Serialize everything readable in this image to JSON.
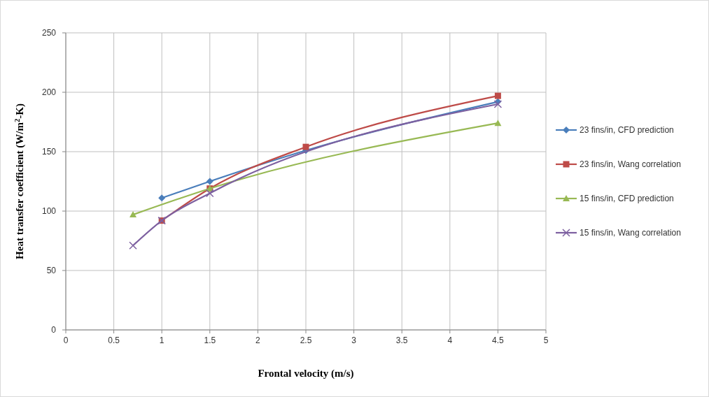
{
  "chart_data": {
    "type": "line",
    "xlabel": "Frontal velocity (m/s)",
    "ylabel": "Heat transfer coefficient (W/m$^{2}$-K)",
    "xlim": [
      0,
      5
    ],
    "xticks": [
      0,
      0.5,
      1,
      1.5,
      2,
      2.5,
      3,
      3.5,
      4,
      4.5,
      5
    ],
    "ylim": [
      0,
      250
    ],
    "yticks": [
      0,
      50,
      100,
      150,
      200,
      250
    ],
    "grid": true,
    "legend": "right",
    "series": [
      {
        "name": "23 fins/in, CFD prediction",
        "color": "#4a7ebb",
        "marker": "diamond",
        "x": [
          1,
          1.5,
          2.5,
          4.5
        ],
        "values": [
          111,
          125,
          151,
          192
        ]
      },
      {
        "name": "23 fins/in, Wang correlation",
        "color": "#be4b48",
        "marker": "square",
        "x": [
          1,
          1.5,
          2.5,
          4.5
        ],
        "values": [
          92,
          119,
          154,
          197
        ]
      },
      {
        "name": "15 fins/in, CFD prediction",
        "color": "#98b954",
        "marker": "triangle",
        "x": [
          0.7,
          1.5,
          4.5
        ],
        "values": [
          97,
          119,
          174
        ]
      },
      {
        "name": "15 fins/in, Wang correlation",
        "color": "#7d60a0",
        "marker": "cross",
        "x": [
          0.7,
          1,
          1.5,
          4.5
        ],
        "values": [
          71,
          92,
          115,
          190
        ]
      }
    ]
  }
}
